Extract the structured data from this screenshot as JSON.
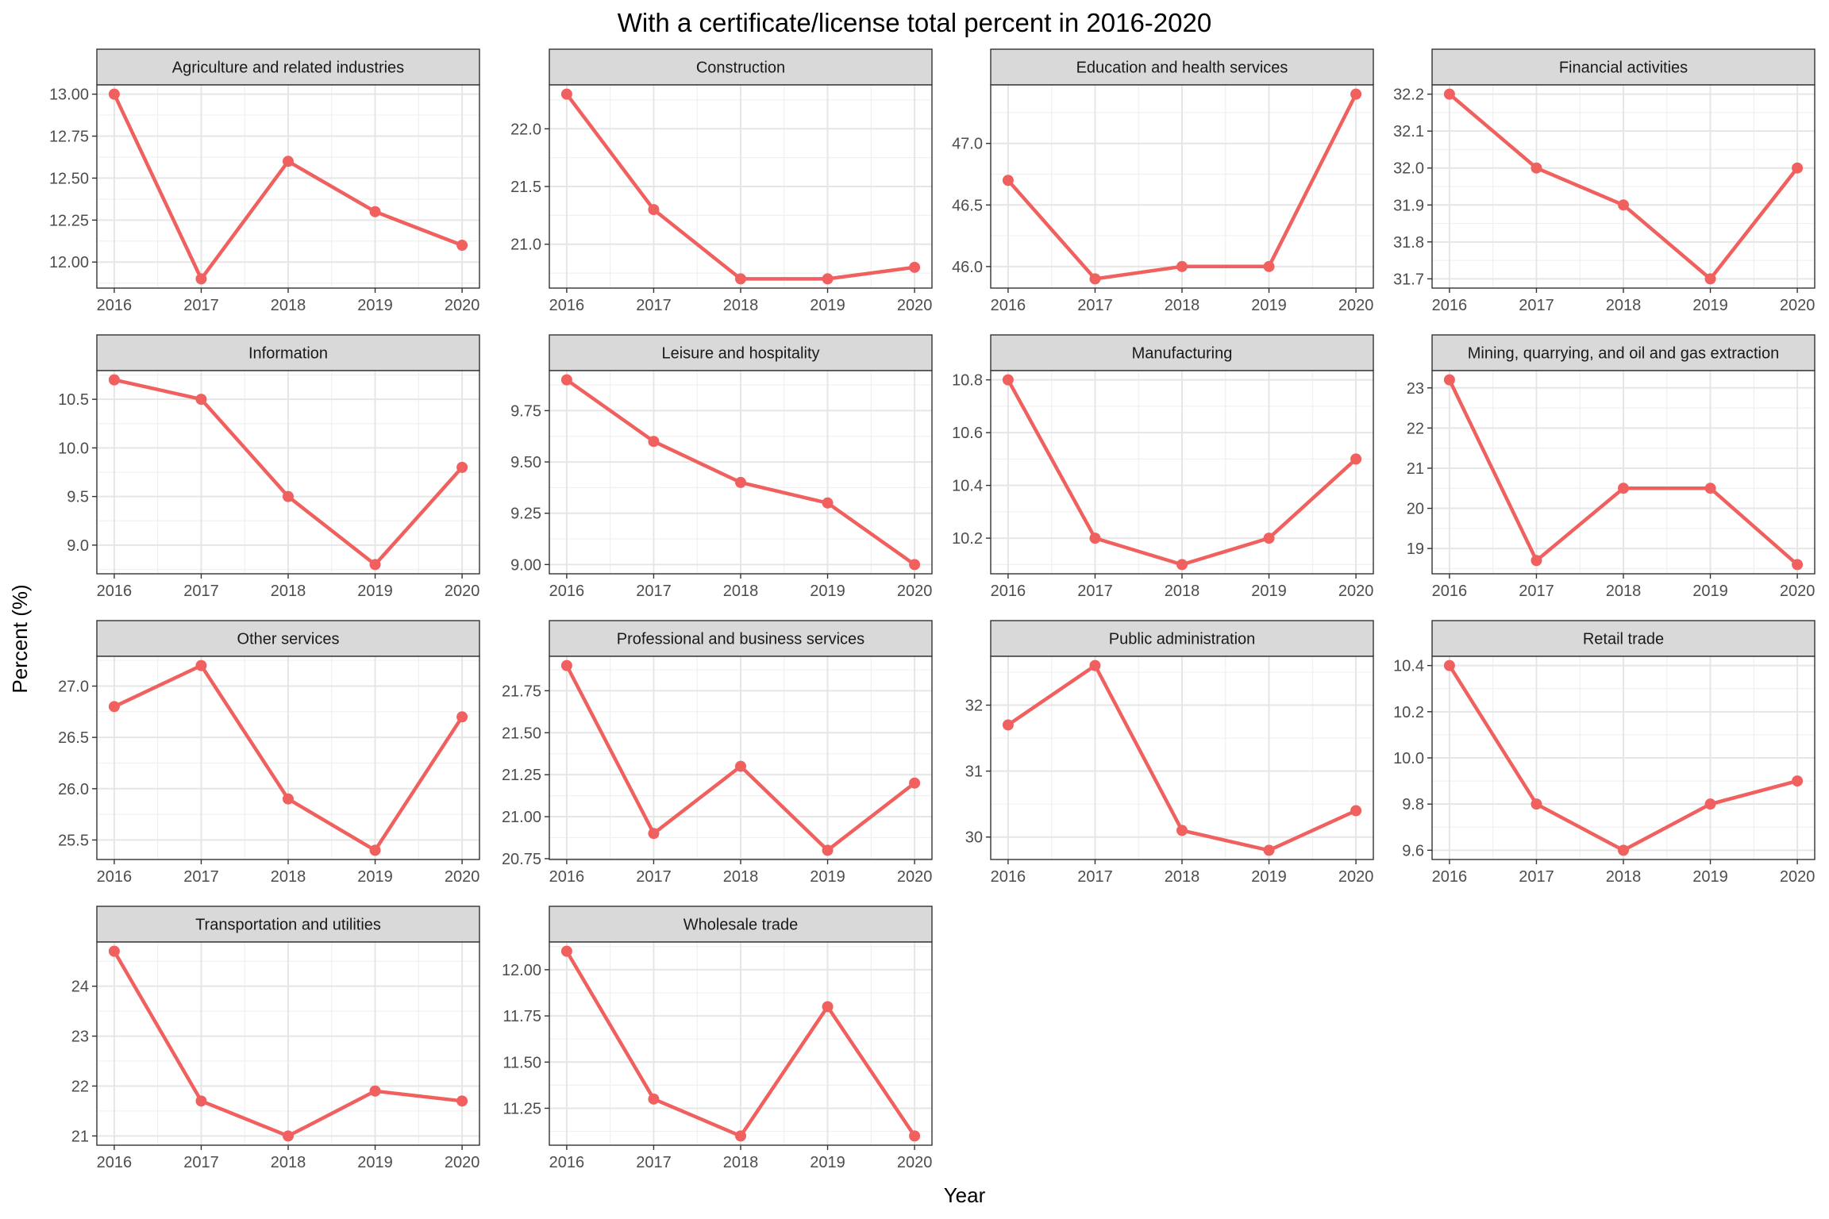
{
  "chart_data": {
    "type": "line",
    "title": "With a certificate/license total percent in 2016-2020",
    "xlabel": "Year",
    "ylabel": "Percent (%)",
    "x": [
      2016,
      2017,
      2018,
      2019,
      2020
    ],
    "grid": true,
    "legend": "none",
    "line_color": "#f0605e",
    "panels": [
      {
        "name": "Agriculture and related industries",
        "values": [
          13.0,
          11.9,
          12.6,
          12.3,
          12.1
        ],
        "yticks": [
          12.0,
          12.25,
          12.5,
          12.75,
          13.0
        ],
        "ytick_labels": [
          "12.00",
          "12.25",
          "12.50",
          "12.75",
          "13.00"
        ],
        "ylim": [
          11.845,
          13.055
        ]
      },
      {
        "name": "Construction",
        "values": [
          22.3,
          21.3,
          20.7,
          20.7,
          20.8
        ],
        "yticks": [
          21.0,
          21.5,
          22.0
        ],
        "ytick_labels": [
          "21.0",
          "21.5",
          "22.0"
        ],
        "ylim": [
          20.62,
          22.38
        ]
      },
      {
        "name": "Education and health services",
        "values": [
          46.7,
          45.9,
          46.0,
          46.0,
          47.4
        ],
        "yticks": [
          46.0,
          46.5,
          47.0
        ],
        "ytick_labels": [
          "46.0",
          "46.5",
          "47.0"
        ],
        "ylim": [
          45.825,
          47.475
        ]
      },
      {
        "name": "Financial activities",
        "values": [
          32.2,
          32.0,
          31.9,
          31.7,
          32.0
        ],
        "yticks": [
          31.7,
          31.8,
          31.9,
          32.0,
          32.1,
          32.2
        ],
        "ytick_labels": [
          "31.7",
          "31.8",
          "31.9",
          "32.0",
          "32.1",
          "32.2"
        ],
        "ylim": [
          31.675,
          32.225
        ]
      },
      {
        "name": "Information",
        "values": [
          10.7,
          10.5,
          9.5,
          8.8,
          9.8
        ],
        "yticks": [
          9.0,
          9.5,
          10.0,
          10.5
        ],
        "ytick_labels": [
          "9.0",
          "9.5",
          "10.0",
          "10.5"
        ],
        "ylim": [
          8.705,
          10.795
        ]
      },
      {
        "name": "Leisure and hospitality",
        "values": [
          9.9,
          9.6,
          9.4,
          9.3,
          9.0
        ],
        "yticks": [
          9.0,
          9.25,
          9.5,
          9.75
        ],
        "ytick_labels": [
          "9.00",
          "9.25",
          "9.50",
          "9.75"
        ],
        "ylim": [
          8.955,
          9.945
        ]
      },
      {
        "name": "Manufacturing",
        "values": [
          10.8,
          10.2,
          10.1,
          10.2,
          10.5
        ],
        "yticks": [
          10.2,
          10.4,
          10.6,
          10.8
        ],
        "ytick_labels": [
          "10.2",
          "10.4",
          "10.6",
          "10.8"
        ],
        "ylim": [
          10.065,
          10.835
        ]
      },
      {
        "name": "Mining, quarrying, and oil and gas extraction",
        "values": [
          23.2,
          18.7,
          20.5,
          20.5,
          18.6
        ],
        "yticks": [
          19,
          20,
          21,
          22,
          23
        ],
        "ytick_labels": [
          "19",
          "20",
          "21",
          "22",
          "23"
        ],
        "ylim": [
          18.37,
          23.43
        ]
      },
      {
        "name": "Other services",
        "values": [
          26.8,
          27.2,
          25.9,
          25.4,
          26.7
        ],
        "yticks": [
          25.5,
          26.0,
          26.5,
          27.0
        ],
        "ytick_labels": [
          "25.5",
          "26.0",
          "26.5",
          "27.0"
        ],
        "ylim": [
          25.31,
          27.29
        ]
      },
      {
        "name": "Professional and business services",
        "values": [
          21.9,
          20.9,
          21.3,
          20.8,
          21.2
        ],
        "yticks": [
          20.75,
          21.0,
          21.25,
          21.5,
          21.75
        ],
        "ytick_labels": [
          "20.75",
          "21.00",
          "21.25",
          "21.50",
          "21.75"
        ],
        "ylim": [
          20.745,
          21.955
        ]
      },
      {
        "name": "Public administration",
        "values": [
          31.7,
          32.6,
          30.1,
          29.8,
          30.4
        ],
        "yticks": [
          30,
          31,
          32
        ],
        "ytick_labels": [
          "30",
          "31",
          "32"
        ],
        "ylim": [
          29.66,
          32.74
        ]
      },
      {
        "name": "Retail trade",
        "values": [
          10.4,
          9.8,
          9.6,
          9.8,
          9.9
        ],
        "yticks": [
          9.6,
          9.8,
          10.0,
          10.2,
          10.4
        ],
        "ytick_labels": [
          "9.6",
          "9.8",
          "10.0",
          "10.2",
          "10.4"
        ],
        "ylim": [
          9.56,
          10.44
        ]
      },
      {
        "name": "Transportation and utilities",
        "values": [
          24.7,
          21.7,
          21.0,
          21.9,
          21.7
        ],
        "yticks": [
          21,
          22,
          23,
          24
        ],
        "ytick_labels": [
          "21",
          "22",
          "23",
          "24"
        ],
        "ylim": [
          20.815,
          24.885
        ]
      },
      {
        "name": "Wholesale trade",
        "values": [
          12.1,
          11.3,
          11.1,
          11.8,
          11.1
        ],
        "yticks": [
          11.25,
          11.5,
          11.75,
          12.0
        ],
        "ytick_labels": [
          "11.25",
          "11.50",
          "11.75",
          "12.00"
        ],
        "ylim": [
          11.05,
          12.15
        ]
      }
    ]
  }
}
